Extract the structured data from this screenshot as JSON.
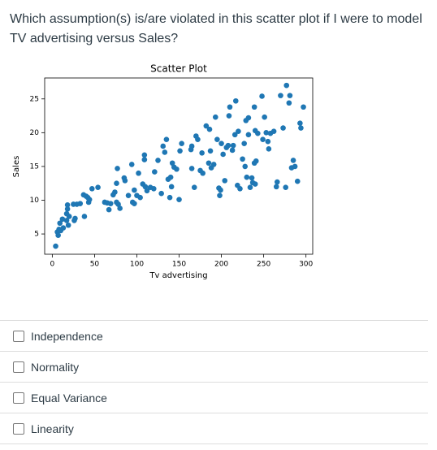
{
  "question": "Which assumption(s) is/are violated in this scatter plot if I were to model TV advertising versus Sales?",
  "chart_data": {
    "type": "scatter",
    "title": "Scatter Plot",
    "x_label": "Tv advertising",
    "y_label": "Sales",
    "color": "#1f77b4",
    "xlim": [
      -9,
      308
    ],
    "ylim": [
      2,
      28.1
    ],
    "xticks": [
      0,
      50,
      100,
      150,
      200,
      250,
      300
    ],
    "yticks": [
      5,
      10,
      15,
      20,
      25
    ],
    "x": [
      4,
      6,
      7,
      8,
      9,
      10,
      12,
      13,
      17,
      17,
      18,
      18,
      19,
      20,
      25,
      26,
      27,
      29,
      33,
      37,
      38,
      40,
      42,
      43,
      44,
      47,
      54,
      62,
      65,
      67,
      69,
      72,
      74,
      76,
      76,
      77,
      78,
      80,
      85,
      86,
      90,
      94,
      95,
      97,
      97,
      100,
      102,
      104,
      107,
      109,
      110,
      109,
      112,
      116,
      120,
      121,
      125,
      129,
      131,
      133,
      135,
      137,
      140,
      139,
      141,
      142,
      144,
      147,
      150,
      151,
      153,
      164,
      165,
      165,
      168,
      170,
      172,
      175,
      177,
      178,
      182,
      185,
      186,
      187,
      188,
      191,
      193,
      195,
      197,
      198,
      199,
      200,
      202,
      204,
      206,
      208,
      209,
      210,
      213,
      214,
      216,
      217,
      219,
      220,
      222,
      225,
      227,
      228,
      229,
      230,
      232,
      232,
      234,
      236,
      237,
      239,
      239,
      240,
      240,
      241,
      243,
      248,
      249,
      251,
      253,
      255,
      256,
      258,
      262,
      265,
      266,
      270,
      273,
      276,
      277,
      280,
      281,
      283,
      285,
      287,
      290,
      293,
      294,
      297
    ],
    "values": [
      3.2,
      5.3,
      4.8,
      5.7,
      6.6,
      5.5,
      7.2,
      5.9,
      7.0,
      8.0,
      8.7,
      9.3,
      6.3,
      7.6,
      9.4,
      7.0,
      7.3,
      9.4,
      9.5,
      10.8,
      7.6,
      10.6,
      10.4,
      9.7,
      10.1,
      11.7,
      11.9,
      9.7,
      9.6,
      8.6,
      9.5,
      10.8,
      11.2,
      9.7,
      12.5,
      14.7,
      9.4,
      8.8,
      13.3,
      12.9,
      10.7,
      15.3,
      9.7,
      9.5,
      11.5,
      10.7,
      14.0,
      10.4,
      12.4,
      16.7,
      12.0,
      16.0,
      11.4,
      11.9,
      11.7,
      14.2,
      15.9,
      11.0,
      18.0,
      17.1,
      19.0,
      13.1,
      13.4,
      10.4,
      12.0,
      15.5,
      14.9,
      14.6,
      10.1,
      17.3,
      18.4,
      17.5,
      18.0,
      14.7,
      11.9,
      19.5,
      19.0,
      14.4,
      17.0,
      14.0,
      21.0,
      15.5,
      20.5,
      17.3,
      14.8,
      15.3,
      22.3,
      19.0,
      11.8,
      10.7,
      11.5,
      18.4,
      16.8,
      12.9,
      17.8,
      18.1,
      22.5,
      23.8,
      17.4,
      18.1,
      19.7,
      24.7,
      12.2,
      20.2,
      11.7,
      16.1,
      18.4,
      15.0,
      21.8,
      13.4,
      22.2,
      19.7,
      11.9,
      13.3,
      12.6,
      23.8,
      15.5,
      20.3,
      12.4,
      15.8,
      19.9,
      25.4,
      19.0,
      22.3,
      20.0,
      18.7,
      17.6,
      19.9,
      20.2,
      12.0,
      12.7,
      25.5,
      20.7,
      11.9,
      27.0,
      24.4,
      25.5,
      14.8,
      15.9,
      15.0,
      12.8,
      21.4,
      20.7,
      23.8
    ]
  },
  "options": [
    "Independence",
    "Normality",
    "Equal Variance",
    "Linearity"
  ]
}
